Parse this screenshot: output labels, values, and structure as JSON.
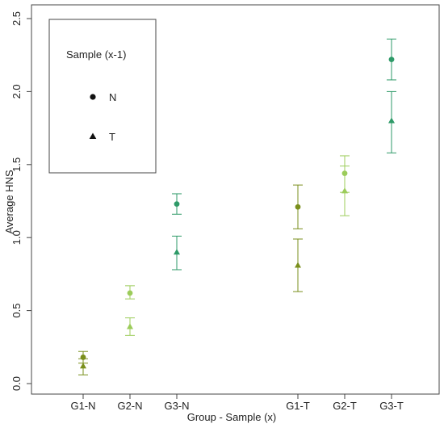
{
  "chart_data": {
    "type": "scatter",
    "title": "",
    "xlabel": "Group - Sample (x)",
    "ylabel": "Average HNS",
    "ylim": [
      -0.05,
      2.55
    ],
    "yticks": [
      "0.0",
      "0.5",
      "1.0",
      "1.5",
      "2.0",
      "2.5"
    ],
    "categories": [
      "G1-N",
      "G2-N",
      "G3-N",
      "G1-T",
      "G2-T",
      "G3-T"
    ],
    "grid": false,
    "error_bars": true,
    "legend": {
      "title": "Sample (x-1)",
      "position": "top-left",
      "entries": [
        {
          "label": "N",
          "marker": "circle"
        },
        {
          "label": "T",
          "marker": "triangle"
        }
      ]
    },
    "series": [
      {
        "marker": "circle",
        "points": [
          {
            "category": "G1-N",
            "y": 0.18,
            "low": 0.14,
            "high": 0.22,
            "color": "#7a8f1c"
          },
          {
            "category": "G2-N",
            "y": 0.62,
            "low": 0.58,
            "high": 0.67,
            "color": "#9ccc5a"
          },
          {
            "category": "G3-N",
            "y": 1.23,
            "low": 1.16,
            "high": 1.3,
            "color": "#2e9a68"
          },
          {
            "category": "G1-T",
            "y": 1.21,
            "low": 1.06,
            "high": 1.36,
            "color": "#7a8f1c"
          },
          {
            "category": "G2-T",
            "y": 1.44,
            "low": 1.31,
            "high": 1.56,
            "color": "#9ccc5a"
          },
          {
            "category": "G3-T",
            "y": 2.22,
            "low": 2.08,
            "high": 2.36,
            "color": "#2e9a68"
          }
        ]
      },
      {
        "marker": "triangle",
        "points": [
          {
            "category": "G1-N",
            "y": 0.12,
            "low": 0.06,
            "high": 0.17,
            "color": "#7a8f1c"
          },
          {
            "category": "G2-N",
            "y": 0.39,
            "low": 0.33,
            "high": 0.45,
            "color": "#9ccc5a"
          },
          {
            "category": "G3-N",
            "y": 0.9,
            "low": 0.78,
            "high": 1.01,
            "color": "#2e9a68"
          },
          {
            "category": "G1-T",
            "y": 0.81,
            "low": 0.63,
            "high": 0.99,
            "color": "#7a8f1c"
          },
          {
            "category": "G2-T",
            "y": 1.32,
            "low": 1.15,
            "high": 1.49,
            "color": "#9ccc5a"
          },
          {
            "category": "G3-T",
            "y": 1.8,
            "low": 1.58,
            "high": 2.0,
            "color": "#2e9a68"
          }
        ]
      }
    ]
  }
}
